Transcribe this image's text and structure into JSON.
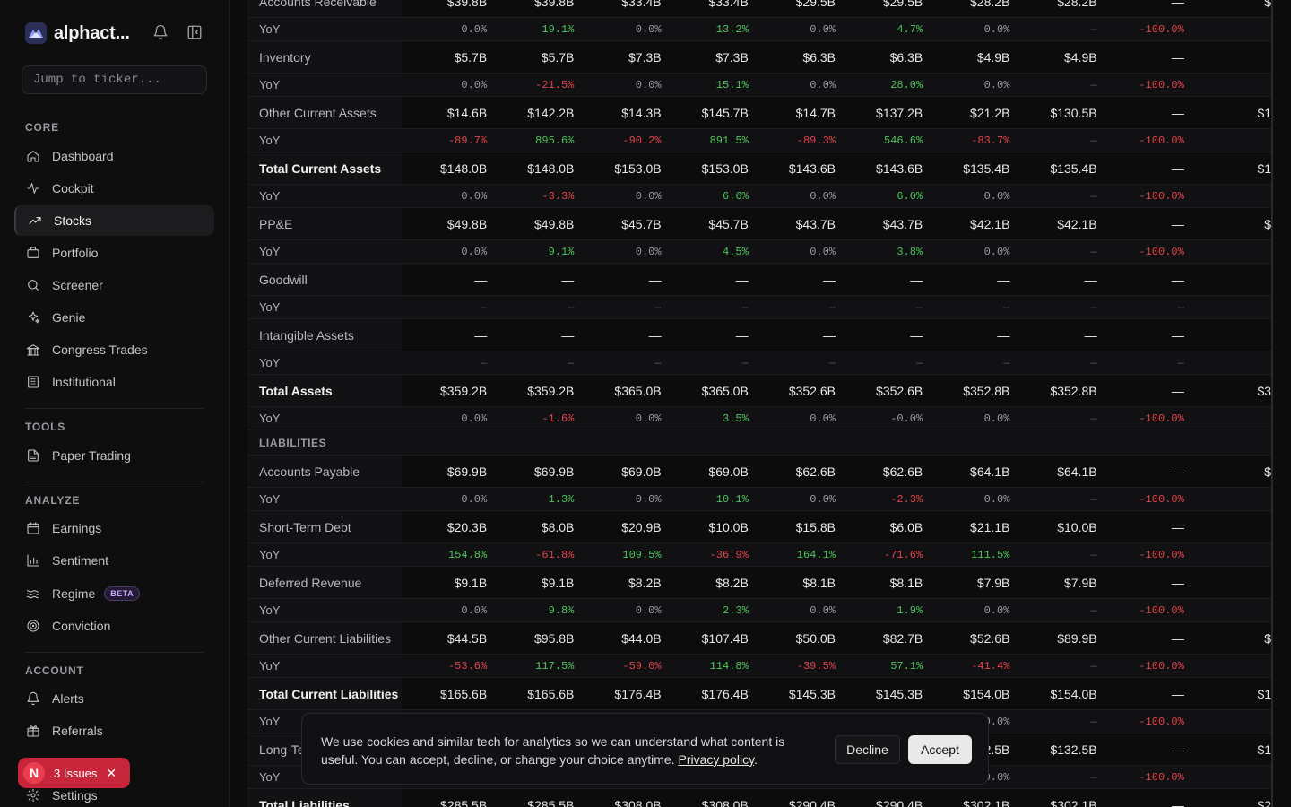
{
  "sidebar": {
    "brand": "alphact...",
    "search_placeholder": "Jump to ticker...",
    "sections": {
      "core": "CORE",
      "tools": "TOOLS",
      "analyze": "ANALYZE",
      "account": "ACCOUNT"
    },
    "core_items": [
      "Dashboard",
      "Cockpit",
      "Stocks",
      "Portfolio",
      "Screener",
      "Genie",
      "Congress Trades",
      "Institutional"
    ],
    "tools_items": [
      "Paper Trading"
    ],
    "analyze_items": [
      "Earnings",
      "Sentiment",
      "Regime",
      "Conviction"
    ],
    "analyze_badge": "BETA",
    "account_items": [
      "Alerts",
      "Referrals",
      "Settings"
    ],
    "active_item": "Stocks"
  },
  "issues": {
    "initial": "N",
    "label": "3 Issues",
    "close": "✕"
  },
  "table": {
    "rows": [
      {
        "type": "val",
        "label": "Accounts Receivable",
        "cells": [
          "$39.8B",
          "$39.8B",
          "$33.4B",
          "$33.4B",
          "$29.5B",
          "$29.5B",
          "$28.2B",
          "$28.2B",
          "—",
          "$"
        ]
      },
      {
        "type": "yoy",
        "label": "YoY",
        "cells": [
          "0.0%",
          "19.1%",
          "0.0%",
          "13.2%",
          "0.0%",
          "4.7%",
          "0.0%",
          "—",
          "-100.0%",
          ""
        ]
      },
      {
        "type": "val",
        "label": "Inventory",
        "cells": [
          "$5.7B",
          "$5.7B",
          "$7.3B",
          "$7.3B",
          "$6.3B",
          "$6.3B",
          "$4.9B",
          "$4.9B",
          "—",
          ""
        ]
      },
      {
        "type": "yoy",
        "label": "YoY",
        "cells": [
          "0.0%",
          "-21.5%",
          "0.0%",
          "15.1%",
          "0.0%",
          "28.0%",
          "0.0%",
          "—",
          "-100.0%",
          ""
        ]
      },
      {
        "type": "val",
        "label": "Other Current Assets",
        "cells": [
          "$14.6B",
          "$142.2B",
          "$14.3B",
          "$145.7B",
          "$14.7B",
          "$137.2B",
          "$21.2B",
          "$130.5B",
          "—",
          "$1"
        ]
      },
      {
        "type": "yoy",
        "label": "YoY",
        "cells": [
          "-89.7%",
          "895.6%",
          "-90.2%",
          "891.5%",
          "-89.3%",
          "546.6%",
          "-83.7%",
          "—",
          "-100.0%",
          ""
        ]
      },
      {
        "type": "val",
        "bold": true,
        "label": "Total Current Assets",
        "cells": [
          "$148.0B",
          "$148.0B",
          "$153.0B",
          "$153.0B",
          "$143.6B",
          "$143.6B",
          "$135.4B",
          "$135.4B",
          "—",
          "$1"
        ]
      },
      {
        "type": "yoy",
        "label": "YoY",
        "cells": [
          "0.0%",
          "-3.3%",
          "0.0%",
          "6.6%",
          "0.0%",
          "6.0%",
          "0.0%",
          "—",
          "-100.0%",
          ""
        ]
      },
      {
        "type": "val",
        "label": "PP&E",
        "cells": [
          "$49.8B",
          "$49.8B",
          "$45.7B",
          "$45.7B",
          "$43.7B",
          "$43.7B",
          "$42.1B",
          "$42.1B",
          "—",
          "$"
        ]
      },
      {
        "type": "yoy",
        "label": "YoY",
        "cells": [
          "0.0%",
          "9.1%",
          "0.0%",
          "4.5%",
          "0.0%",
          "3.8%",
          "0.0%",
          "—",
          "-100.0%",
          ""
        ]
      },
      {
        "type": "val",
        "label": "Goodwill",
        "cells": [
          "—",
          "—",
          "—",
          "—",
          "—",
          "—",
          "—",
          "—",
          "—",
          ""
        ]
      },
      {
        "type": "yoy",
        "label": "YoY",
        "cells": [
          "—",
          "—",
          "—",
          "—",
          "—",
          "—",
          "—",
          "—",
          "—",
          ""
        ]
      },
      {
        "type": "val",
        "label": "Intangible Assets",
        "cells": [
          "—",
          "—",
          "—",
          "—",
          "—",
          "—",
          "—",
          "—",
          "—",
          ""
        ]
      },
      {
        "type": "yoy",
        "label": "YoY",
        "cells": [
          "—",
          "—",
          "—",
          "—",
          "—",
          "—",
          "—",
          "—",
          "—",
          ""
        ]
      },
      {
        "type": "val",
        "bold": true,
        "label": "Total Assets",
        "cells": [
          "$359.2B",
          "$359.2B",
          "$365.0B",
          "$365.0B",
          "$352.6B",
          "$352.6B",
          "$352.8B",
          "$352.8B",
          "—",
          "$3"
        ]
      },
      {
        "type": "yoy",
        "label": "YoY",
        "cells": [
          "0.0%",
          "-1.6%",
          "0.0%",
          "3.5%",
          "0.0%",
          "-0.0%",
          "0.0%",
          "—",
          "-100.0%",
          ""
        ]
      },
      {
        "type": "section",
        "label": "LIABILITIES"
      },
      {
        "type": "val",
        "label": "Accounts Payable",
        "cells": [
          "$69.9B",
          "$69.9B",
          "$69.0B",
          "$69.0B",
          "$62.6B",
          "$62.6B",
          "$64.1B",
          "$64.1B",
          "—",
          "$"
        ]
      },
      {
        "type": "yoy",
        "label": "YoY",
        "cells": [
          "0.0%",
          "1.3%",
          "0.0%",
          "10.1%",
          "0.0%",
          "-2.3%",
          "0.0%",
          "—",
          "-100.0%",
          ""
        ]
      },
      {
        "type": "val",
        "label": "Short-Term Debt",
        "cells": [
          "$20.3B",
          "$8.0B",
          "$20.9B",
          "$10.0B",
          "$15.8B",
          "$6.0B",
          "$21.1B",
          "$10.0B",
          "—",
          ""
        ]
      },
      {
        "type": "yoy",
        "label": "YoY",
        "cells": [
          "154.8%",
          "-61.8%",
          "109.5%",
          "-36.9%",
          "164.1%",
          "-71.6%",
          "111.5%",
          "—",
          "-100.0%",
          ""
        ]
      },
      {
        "type": "val",
        "label": "Deferred Revenue",
        "cells": [
          "$9.1B",
          "$9.1B",
          "$8.2B",
          "$8.2B",
          "$8.1B",
          "$8.1B",
          "$7.9B",
          "$7.9B",
          "—",
          ""
        ]
      },
      {
        "type": "yoy",
        "label": "YoY",
        "cells": [
          "0.0%",
          "9.8%",
          "0.0%",
          "2.3%",
          "0.0%",
          "1.9%",
          "0.0%",
          "—",
          "-100.0%",
          ""
        ]
      },
      {
        "type": "val",
        "label": "Other Current Liabilities",
        "cells": [
          "$44.5B",
          "$95.8B",
          "$44.0B",
          "$107.4B",
          "$50.0B",
          "$82.7B",
          "$52.6B",
          "$89.9B",
          "—",
          "$"
        ]
      },
      {
        "type": "yoy",
        "label": "YoY",
        "cells": [
          "-53.6%",
          "117.5%",
          "-59.0%",
          "114.8%",
          "-39.5%",
          "57.1%",
          "-41.4%",
          "—",
          "-100.0%",
          ""
        ]
      },
      {
        "type": "val",
        "bold": true,
        "label": "Total Current Liabilities",
        "cells": [
          "$165.6B",
          "$165.6B",
          "$176.4B",
          "$176.4B",
          "$145.3B",
          "$145.3B",
          "$154.0B",
          "$154.0B",
          "—",
          "$1"
        ]
      },
      {
        "type": "yoy",
        "label": "YoY",
        "cells": [
          "",
          "",
          "",
          "",
          "",
          "",
          "0.0%",
          "—",
          "-100.0%",
          ""
        ]
      },
      {
        "type": "val",
        "label": "Long-Te",
        "cells": [
          "",
          "",
          "",
          "",
          "",
          "",
          "$132.5B",
          "$132.5B",
          "—",
          "$1"
        ]
      },
      {
        "type": "yoy",
        "label": "YoY",
        "cells": [
          "",
          "",
          "",
          "",
          "",
          "",
          "0.0%",
          "—",
          "-100.0%",
          ""
        ]
      },
      {
        "type": "val",
        "bold": true,
        "label": "Total Liabilities",
        "cells": [
          "$285.5B",
          "$285.5B",
          "$308.0B",
          "$308.0B",
          "$290.4B",
          "$290.4B",
          "$302.1B",
          "$302.1B",
          "—",
          "$2"
        ]
      }
    ]
  },
  "cookie": {
    "text": "We use cookies and similar tech for analytics so we can understand what content is useful. You can accept, decline, or change your choice anytime.",
    "link": "Privacy policy",
    "period": ".",
    "decline": "Decline",
    "accept": "Accept"
  },
  "colors": {
    "positive": "#4ec45c",
    "negative": "#e0444a",
    "issues": "#c7263a"
  }
}
